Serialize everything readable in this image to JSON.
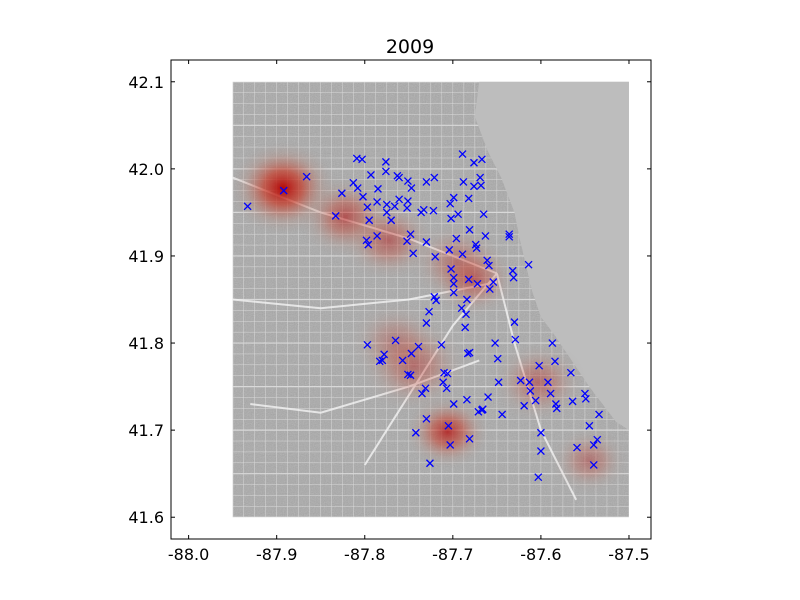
{
  "chart_data": {
    "type": "scatter",
    "title": "2009",
    "xlabel": "",
    "ylabel": "",
    "xlim": [
      -88.02,
      -87.475
    ],
    "ylim": [
      41.575,
      42.125
    ],
    "x_ticks": [
      "-88.0",
      "-87.9",
      "-87.8",
      "-87.7",
      "-87.6",
      "-87.5"
    ],
    "x_tick_values": [
      -88.0,
      -87.9,
      -87.8,
      -87.7,
      -87.6,
      -87.5
    ],
    "y_ticks": [
      "41.6",
      "41.7",
      "41.8",
      "41.9",
      "42.0",
      "42.1"
    ],
    "y_tick_values": [
      41.6,
      41.7,
      41.8,
      41.9,
      42.0,
      42.1
    ],
    "grid": false,
    "background_map": {
      "extent": {
        "lon": [
          -87.95,
          -87.5
        ],
        "lat": [
          41.6,
          42.1
        ]
      },
      "land_color": "#a9a9a9",
      "water_color": "#bdbdbd"
    },
    "marker": {
      "symbol": "x",
      "color": "#0000ff"
    },
    "points": [
      [
        -87.933,
        41.957
      ],
      [
        -87.892,
        41.975
      ],
      [
        -87.866,
        41.991
      ],
      [
        -87.833,
        41.946
      ],
      [
        -87.826,
        41.972
      ],
      [
        -87.813,
        41.984
      ],
      [
        -87.808,
        41.978
      ],
      [
        -87.809,
        42.012
      ],
      [
        -87.803,
        42.011
      ],
      [
        -87.802,
        41.968
      ],
      [
        -87.797,
        41.956
      ],
      [
        -87.798,
        41.918
      ],
      [
        -87.796,
        41.913
      ],
      [
        -87.795,
        41.941
      ],
      [
        -87.793,
        41.993
      ],
      [
        -87.786,
        41.962
      ],
      [
        -87.785,
        41.977
      ],
      [
        -87.786,
        41.923
      ],
      [
        -87.776,
        41.997
      ],
      [
        -87.775,
        41.959
      ],
      [
        -87.775,
        41.95
      ],
      [
        -87.77,
        41.941
      ],
      [
        -87.776,
        42.008
      ],
      [
        -87.761,
        41.99
      ],
      [
        -87.763,
        41.992
      ],
      [
        -87.766,
        41.957
      ],
      [
        -87.761,
        41.965
      ],
      [
        -87.752,
        41.955
      ],
      [
        -87.751,
        41.986
      ],
      [
        -87.751,
        41.963
      ],
      [
        -87.747,
        41.978
      ],
      [
        -87.752,
        41.917
      ],
      [
        -87.748,
        41.925
      ],
      [
        -87.745,
        41.903
      ],
      [
        -87.736,
        41.95
      ],
      [
        -87.733,
        41.953
      ],
      [
        -87.73,
        41.985
      ],
      [
        -87.73,
        41.916
      ],
      [
        -87.722,
        41.952
      ],
      [
        -87.721,
        41.99
      ],
      [
        -87.72,
        41.899
      ],
      [
        -87.727,
        41.836
      ],
      [
        -87.73,
        41.823
      ],
      [
        -87.719,
        41.849
      ],
      [
        -87.721,
        41.853
      ],
      [
        -87.713,
        41.798
      ],
      [
        -87.711,
        41.755
      ],
      [
        -87.707,
        41.748
      ],
      [
        -87.706,
        41.765
      ],
      [
        -87.704,
        41.907
      ],
      [
        -87.702,
        41.943
      ],
      [
        -87.703,
        41.96
      ],
      [
        -87.699,
        41.967
      ],
      [
        -87.702,
        41.885
      ],
      [
        -87.699,
        41.875
      ],
      [
        -87.699,
        41.868
      ],
      [
        -87.699,
        41.858
      ],
      [
        -87.696,
        41.92
      ],
      [
        -87.694,
        41.948
      ],
      [
        -87.689,
        41.902
      ],
      [
        -87.69,
        41.84
      ],
      [
        -87.686,
        41.818
      ],
      [
        -87.685,
        41.833
      ],
      [
        -87.684,
        41.85
      ],
      [
        -87.683,
        41.788
      ],
      [
        -87.681,
        41.789
      ],
      [
        -87.689,
        42.017
      ],
      [
        -87.688,
        41.985
      ],
      [
        -87.682,
        41.966
      ],
      [
        -87.681,
        41.93
      ],
      [
        -87.682,
        41.873
      ],
      [
        -87.676,
        42.007
      ],
      [
        -87.676,
        41.98
      ],
      [
        -87.674,
        41.913
      ],
      [
        -87.673,
        41.909
      ],
      [
        -87.672,
        41.868
      ],
      [
        -87.669,
        41.99
      ],
      [
        -87.668,
        41.981
      ],
      [
        -87.667,
        42.011
      ],
      [
        -87.665,
        41.948
      ],
      [
        -87.663,
        41.923
      ],
      [
        -87.661,
        41.895
      ],
      [
        -87.659,
        41.889
      ],
      [
        -87.658,
        41.862
      ],
      [
        -87.654,
        41.87
      ],
      [
        -87.652,
        41.8
      ],
      [
        -87.649,
        41.782
      ],
      [
        -87.648,
        41.755
      ],
      [
        -87.644,
        41.718
      ],
      [
        -87.636,
        41.925
      ],
      [
        -87.636,
        41.922
      ],
      [
        -87.632,
        41.883
      ],
      [
        -87.631,
        41.875
      ],
      [
        -87.63,
        41.824
      ],
      [
        -87.629,
        41.804
      ],
      [
        -87.623,
        41.757
      ],
      [
        -87.619,
        41.728
      ],
      [
        -87.614,
        41.89
      ],
      [
        -87.613,
        41.755
      ],
      [
        -87.612,
        41.745
      ],
      [
        -87.606,
        41.734
      ],
      [
        -87.602,
        41.774
      ],
      [
        -87.6,
        41.697
      ],
      [
        -87.6,
        41.676
      ],
      [
        -87.603,
        41.646
      ],
      [
        -87.592,
        41.755
      ],
      [
        -87.589,
        41.742
      ],
      [
        -87.587,
        41.8
      ],
      [
        -87.584,
        41.779
      ],
      [
        -87.583,
        41.73
      ],
      [
        -87.582,
        41.725
      ],
      [
        -87.566,
        41.766
      ],
      [
        -87.564,
        41.733
      ],
      [
        -87.559,
        41.68
      ],
      [
        -87.55,
        41.742
      ],
      [
        -87.549,
        41.736
      ],
      [
        -87.545,
        41.705
      ],
      [
        -87.54,
        41.66
      ],
      [
        -87.54,
        41.683
      ],
      [
        -87.536,
        41.689
      ],
      [
        -87.534,
        41.718
      ],
      [
        -87.797,
        41.798
      ],
      [
        -87.783,
        41.779
      ],
      [
        -87.78,
        41.78
      ],
      [
        -87.778,
        41.787
      ],
      [
        -87.765,
        41.803
      ],
      [
        -87.757,
        41.78
      ],
      [
        -87.751,
        41.764
      ],
      [
        -87.748,
        41.763
      ],
      [
        -87.747,
        41.788
      ],
      [
        -87.739,
        41.796
      ],
      [
        -87.731,
        41.748
      ],
      [
        -87.735,
        41.742
      ],
      [
        -87.71,
        41.766
      ],
      [
        -87.705,
        41.705
      ],
      [
        -87.703,
        41.683
      ],
      [
        -87.699,
        41.73
      ],
      [
        -87.684,
        41.735
      ],
      [
        -87.681,
        41.69
      ],
      [
        -87.671,
        41.721
      ],
      [
        -87.667,
        41.723
      ],
      [
        -87.666,
        41.724
      ],
      [
        -87.66,
        41.738
      ],
      [
        -87.726,
        41.662
      ],
      [
        -87.742,
        41.697
      ],
      [
        -87.73,
        41.713
      ]
    ],
    "density_hotspots": [
      {
        "lon": -87.893,
        "lat": 41.978,
        "weight": 1.0,
        "spread": 0.034
      },
      {
        "lon": -87.822,
        "lat": 41.945,
        "weight": 0.55,
        "spread": 0.03
      },
      {
        "lon": -87.773,
        "lat": 41.918,
        "weight": 0.45,
        "spread": 0.03
      },
      {
        "lon": -87.696,
        "lat": 41.893,
        "weight": 0.35,
        "spread": 0.03
      },
      {
        "lon": -87.676,
        "lat": 41.873,
        "weight": 0.45,
        "spread": 0.028
      },
      {
        "lon": -87.744,
        "lat": 41.774,
        "weight": 0.4,
        "spread": 0.035
      },
      {
        "lon": -87.706,
        "lat": 41.698,
        "weight": 0.75,
        "spread": 0.027
      },
      {
        "lon": -87.603,
        "lat": 41.755,
        "weight": 0.4,
        "spread": 0.03
      },
      {
        "lon": -87.545,
        "lat": 41.665,
        "weight": 0.35,
        "spread": 0.025
      },
      {
        "lon": -87.766,
        "lat": 41.802,
        "weight": 0.25,
        "spread": 0.03
      }
    ]
  }
}
